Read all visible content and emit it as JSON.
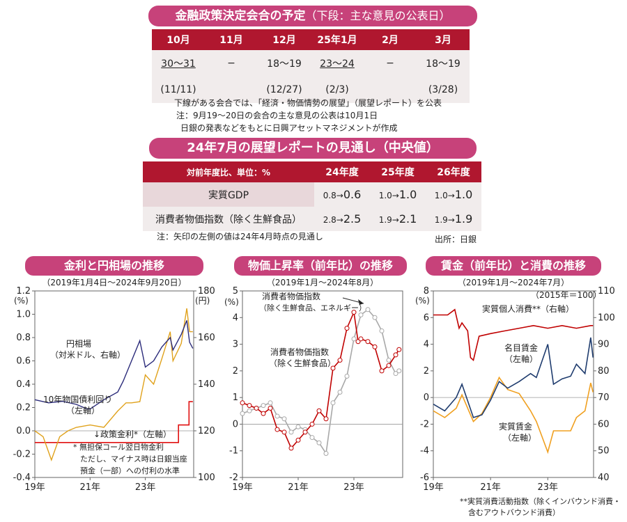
{
  "schedule": {
    "title": "金融政策決定会合の予定",
    "subtitle": "（下段：主な意見の公表日）",
    "months": [
      "10月",
      "11月",
      "12月",
      "25年1月",
      "2月",
      "3月"
    ],
    "meetings": [
      "30〜31",
      "−",
      "18〜19",
      "23〜24",
      "−",
      "18〜19"
    ],
    "opinions": [
      "(11/11)",
      "",
      "(12/27)",
      "(2/3)",
      "",
      "(3/28)"
    ],
    "notes": [
      "下線がある会合では、「経済・物価情勢の展望」（展望レポート）を公表",
      "注：9月19〜20日の会合の主な意見の公表は10月1日",
      "日銀の発表などをもとに日興アセットマネジメントが作成"
    ]
  },
  "outlook": {
    "title": "24年7月の展望レポートの見通し（中央値）",
    "header": [
      "対前年度比、単位：%",
      "24年度",
      "25年度",
      "26年度"
    ],
    "rows": [
      {
        "label": "実質GDP",
        "cells": [
          {
            "from": "0.8→",
            "to": "0.6"
          },
          {
            "from": "1.0→",
            "to": "1.0"
          },
          {
            "from": "1.0→",
            "to": "1.0"
          }
        ]
      },
      {
        "label": "消費者物価指数（除く生鮮食品）",
        "cells": [
          {
            "from": "2.8→",
            "to": "2.5"
          },
          {
            "from": "1.9→",
            "to": "2.1"
          },
          {
            "from": "1.9→",
            "to": "1.9"
          }
        ]
      }
    ],
    "note": "注：矢印の左側の値は24年4月時点の見通し",
    "source": "出所：日銀"
  },
  "chart_data": [
    {
      "type": "line",
      "title": "金利と円相場の推移",
      "subtitle": "（2019年1月4日〜2024年9月20日）",
      "left_unit": "(%)",
      "right_unit": "(円)",
      "left_ylim": [
        -0.4,
        1.2
      ],
      "left_ticks": [
        "1.2",
        "1.0",
        "0.8",
        "0.6",
        "0.4",
        "0.2",
        "0.0",
        "-0.2",
        "-0.4"
      ],
      "right_ylim": [
        60,
        180
      ],
      "right_ticks": [
        "180",
        "160",
        "140",
        "120",
        "100"
      ],
      "x_ticks": [
        "19年",
        "21年",
        "23年"
      ],
      "xlim": [
        2019.0,
        2024.75
      ],
      "colors": {
        "yen": "#2b2b7a",
        "jgb": "#e0a21c",
        "policy": "#e01010"
      },
      "annotations": [
        {
          "label": "円相場",
          "lines": [
            "円相場",
            "（対米ドル、右軸）"
          ]
        },
        {
          "label": "10年物国債利回り",
          "lines": [
            "10年物国債利回り",
            "（左軸）"
          ]
        },
        {
          "label": "政策金利",
          "lines": [
            "↓政策金利*（左軸）"
          ]
        },
        {
          "label": "footnote",
          "lines": [
            "*  無担保コール翌日物金利",
            "ただし、マイナス時は日銀当座",
            "預金（一部）への付利の水準"
          ]
        }
      ],
      "series": [
        {
          "name": "円相場（対米ドル、右軸）",
          "axis": "right",
          "x": [
            2019.0,
            2019.5,
            2020.0,
            2020.5,
            2020.9,
            2021.0,
            2021.5,
            2022.0,
            2022.2,
            2022.5,
            2022.8,
            2023.0,
            2023.3,
            2023.6,
            2023.9,
            2024.0,
            2024.3,
            2024.5,
            2024.6,
            2024.72
          ],
          "y": [
            110,
            108,
            109,
            107,
            104,
            104,
            110,
            115,
            122,
            135,
            148,
            131,
            135,
            144,
            150,
            142,
            152,
            161,
            147,
            143
          ]
        },
        {
          "name": "10年物国債利回り（左軸）",
          "axis": "left",
          "x": [
            2019.0,
            2019.3,
            2019.6,
            2019.9,
            2020.2,
            2020.5,
            2021.0,
            2021.5,
            2022.0,
            2022.3,
            2022.5,
            2022.8,
            2023.0,
            2023.3,
            2023.6,
            2023.9,
            2024.0,
            2024.3,
            2024.5,
            2024.6,
            2024.72
          ],
          "y": [
            0.0,
            -0.05,
            -0.25,
            -0.05,
            0.0,
            0.03,
            0.05,
            0.03,
            0.17,
            0.24,
            0.24,
            0.25,
            0.48,
            0.4,
            0.62,
            0.85,
            0.6,
            0.75,
            1.05,
            0.85,
            0.85
          ]
        },
        {
          "name": "政策金利（左軸）",
          "axis": "left",
          "x": [
            2019.0,
            2024.2,
            2024.2,
            2024.58,
            2024.58,
            2024.72
          ],
          "y": [
            -0.1,
            -0.1,
            0.05,
            0.05,
            0.25,
            0.25
          ]
        }
      ]
    },
    {
      "type": "line",
      "title": "物価上昇率（前年比）の推移",
      "subtitle": "（2019年1月〜2024年8月）",
      "ylabel": "(%)",
      "ylim": [
        -2,
        5
      ],
      "y_ticks": [
        "5",
        "4",
        "3",
        "2",
        "1",
        "0",
        "-1",
        "-2"
      ],
      "x_ticks": [
        "19年",
        "21年",
        "23年"
      ],
      "xlim": [
        2019.0,
        2024.75
      ],
      "colors": {
        "core": "#c00000",
        "corecore": "#a8a8a8"
      },
      "annotations": [
        {
          "label": "消費者物価指数（除く生鮮食品、エネルギー）",
          "lines": [
            "消費者物価指数",
            "（除く生鮮食品、エネルギー）"
          ]
        },
        {
          "label": "消費者物価指数（除く生鮮食品）",
          "lines": [
            "消費者物価指数",
            "（除く生鮮食品）"
          ]
        }
      ],
      "series": [
        {
          "name": "消費者物価指数（除く生鮮食品、エネルギー）",
          "x": [
            2019.0,
            2019.25,
            2019.5,
            2019.75,
            2020.0,
            2020.25,
            2020.5,
            2020.75,
            2021.0,
            2021.25,
            2021.5,
            2021.75,
            2022.0,
            2022.25,
            2022.5,
            2022.75,
            2023.0,
            2023.25,
            2023.5,
            2023.75,
            2024.0,
            2024.25,
            2024.5,
            2024.62
          ],
          "y": [
            0.4,
            0.5,
            0.6,
            0.7,
            0.8,
            0.3,
            0.2,
            -0.3,
            -0.1,
            -0.2,
            -0.5,
            -0.7,
            -1.1,
            0.8,
            1.2,
            1.8,
            3.2,
            4.1,
            4.3,
            4.0,
            3.5,
            2.4,
            1.9,
            2.0
          ]
        },
        {
          "name": "消費者物価指数（除く生鮮食品）",
          "x": [
            2019.0,
            2019.25,
            2019.5,
            2019.75,
            2020.0,
            2020.25,
            2020.5,
            2020.75,
            2021.0,
            2021.25,
            2021.5,
            2021.75,
            2022.0,
            2022.25,
            2022.5,
            2022.75,
            2023.0,
            2023.15,
            2023.25,
            2023.5,
            2023.75,
            2024.0,
            2024.25,
            2024.5,
            2024.62
          ],
          "y": [
            0.8,
            0.7,
            0.6,
            0.4,
            0.6,
            -0.2,
            -0.3,
            -0.9,
            -0.6,
            -0.3,
            0.0,
            0.5,
            0.2,
            2.1,
            2.4,
            3.6,
            4.2,
            3.1,
            3.2,
            3.1,
            2.9,
            2.0,
            2.2,
            2.6,
            2.8
          ]
        }
      ]
    },
    {
      "type": "line",
      "title": "賃金（前年比）と消費の推移",
      "subtitle": "（2019年1月〜2024年7月）",
      "left_unit": "(%)",
      "right_unit": "（2015年＝100）",
      "left_ylim": [
        -6,
        8
      ],
      "left_ticks": [
        "8",
        "6",
        "4",
        "2",
        "0",
        "-2",
        "-4",
        "-6"
      ],
      "right_ylim": [
        40,
        110
      ],
      "right_ticks": [
        "110",
        "100",
        "90",
        "80",
        "70",
        "60",
        "50",
        "40"
      ],
      "x_ticks": [
        "19年",
        "21年",
        "23年"
      ],
      "xlim": [
        2019.0,
        2024.6
      ],
      "colors": {
        "consumption": "#c00000",
        "nominal": "#1f3c6e",
        "real": "#f0a020"
      },
      "annotations": [
        {
          "label": "実質個人消費",
          "lines": [
            "実質個人消費**（右軸）"
          ]
        },
        {
          "label": "名目賃金",
          "lines": [
            "名目賃金",
            "（左軸）"
          ]
        },
        {
          "label": "実質賃金",
          "lines": [
            "実質賃金",
            "（左軸）"
          ]
        },
        {
          "label": "footnote",
          "lines": [
            "**実質消費活動指数（除くインバウンド消費・",
            "含むアウトバウンド消費）"
          ]
        }
      ],
      "series": [
        {
          "name": "実質個人消費**（右軸）",
          "axis": "right",
          "x": [
            2019.0,
            2019.5,
            2019.75,
            2019.9,
            2020.0,
            2020.2,
            2020.3,
            2020.4,
            2020.6,
            2021.0,
            2021.5,
            2022.0,
            2022.5,
            2023.0,
            2023.5,
            2024.0,
            2024.5,
            2024.58
          ],
          "y": [
            101,
            101,
            103,
            96,
            98,
            95,
            85,
            84,
            93,
            94,
            95,
            96,
            97,
            96,
            97,
            96,
            97,
            97
          ]
        },
        {
          "name": "名目賃金（左軸）",
          "axis": "left",
          "x": [
            2019.0,
            2019.4,
            2019.8,
            2020.0,
            2020.4,
            2020.7,
            2021.0,
            2021.3,
            2021.6,
            2022.0,
            2022.4,
            2022.6,
            2023.0,
            2023.2,
            2023.5,
            2023.8,
            2024.0,
            2024.3,
            2024.5,
            2024.58
          ],
          "y": [
            -0.5,
            -1.0,
            0.0,
            1.0,
            -1.5,
            -1.3,
            -0.2,
            1.2,
            0.7,
            1.2,
            1.8,
            1.5,
            4.0,
            1.0,
            1.4,
            1.6,
            2.5,
            1.8,
            4.5,
            3.0
          ]
        },
        {
          "name": "実質賃金（左軸）",
          "axis": "left",
          "x": [
            2019.0,
            2019.4,
            2019.8,
            2020.0,
            2020.4,
            2020.7,
            2021.0,
            2021.3,
            2021.6,
            2022.0,
            2022.4,
            2022.6,
            2023.0,
            2023.2,
            2023.5,
            2023.8,
            2024.0,
            2024.3,
            2024.5,
            2024.58
          ],
          "y": [
            -1.0,
            -1.5,
            -0.8,
            0.2,
            -1.8,
            -1.2,
            0.0,
            1.5,
            0.6,
            0.3,
            -1.0,
            -1.8,
            -4.1,
            -2.5,
            -2.5,
            -2.5,
            -1.5,
            -1.0,
            1.1,
            0.4
          ]
        }
      ]
    }
  ]
}
